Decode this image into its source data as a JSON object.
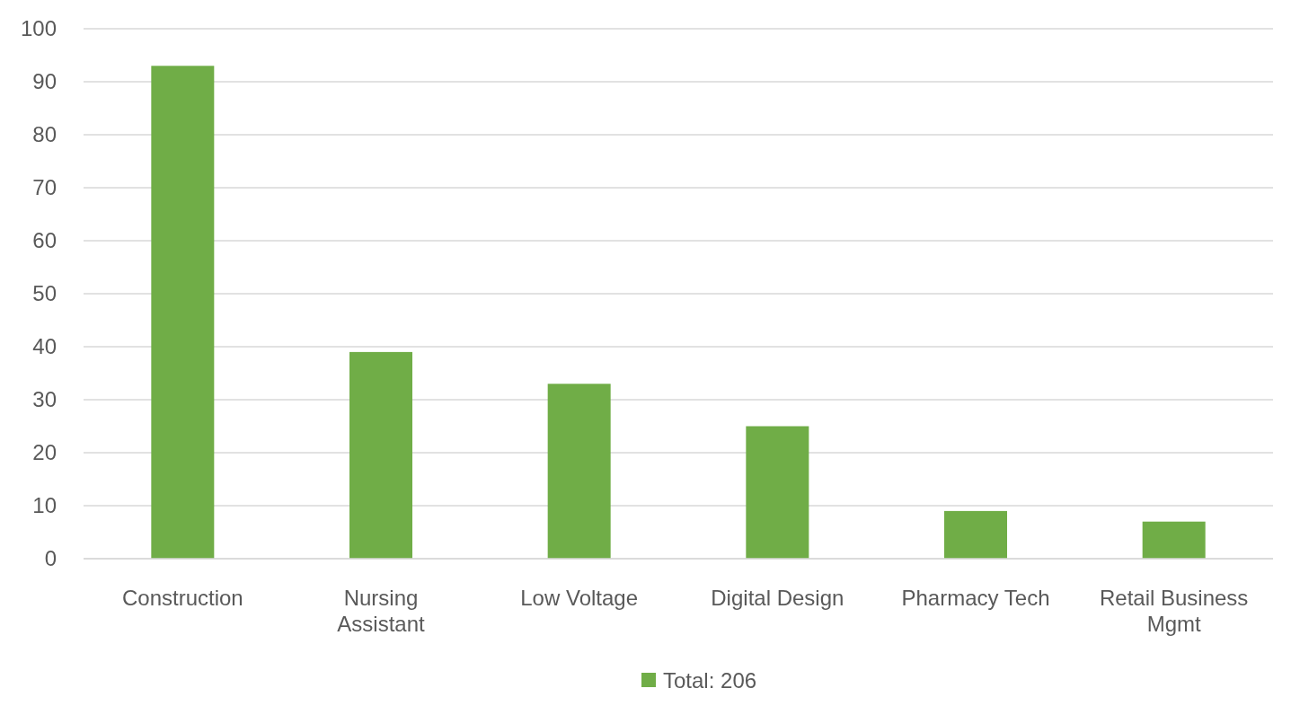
{
  "chart_data": {
    "type": "bar",
    "categories": [
      "Construction",
      "Nursing Assistant",
      "Low Voltage",
      "Digital Design",
      "Pharmacy Tech",
      "Retail Business Mgmt"
    ],
    "series": [
      {
        "name": "Total: 206",
        "color": "#70ad47",
        "values": [
          93,
          39,
          33,
          25,
          9,
          7
        ]
      }
    ],
    "ylim": [
      0,
      100
    ],
    "yticks": [
      0,
      10,
      20,
      30,
      40,
      50,
      60,
      70,
      80,
      90,
      100
    ],
    "grid": "y",
    "legend": "bottom"
  }
}
